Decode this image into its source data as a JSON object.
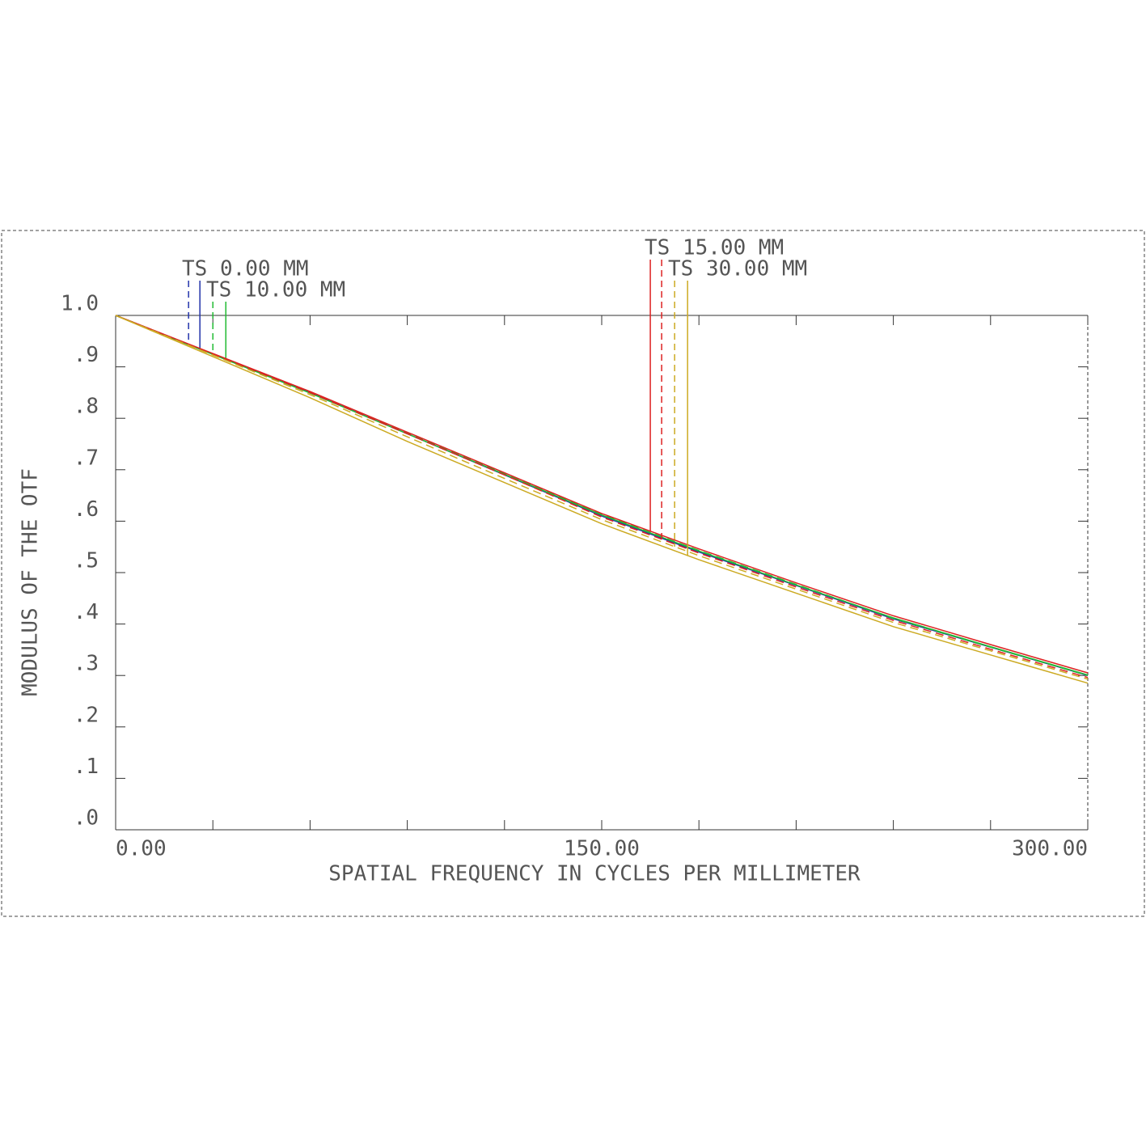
{
  "chart_data": {
    "type": "line",
    "xlabel": "SPATIAL FREQUENCY IN CYCLES PER MILLIMETER",
    "ylabel": "MODULUS OF THE OTF",
    "x": [
      0,
      30,
      60,
      90,
      120,
      150,
      180,
      210,
      240,
      270,
      300
    ],
    "xlim": [
      0,
      300
    ],
    "xticks": [
      {
        "value": 0,
        "label": "0.00"
      },
      {
        "value": 150,
        "label": "150.00"
      },
      {
        "value": 300,
        "label": "300.00"
      }
    ],
    "xminor_ticks": [
      30,
      60,
      90,
      120,
      180,
      210,
      240,
      270
    ],
    "ylim": [
      0,
      1
    ],
    "yticks": [
      {
        "value": 0,
        "label": ".0"
      },
      {
        "value": 0.1,
        "label": ".1"
      },
      {
        "value": 0.2,
        "label": ".2"
      },
      {
        "value": 0.3,
        "label": ".3"
      },
      {
        "value": 0.4,
        "label": ".4"
      },
      {
        "value": 0.5,
        "label": ".5"
      },
      {
        "value": 0.6,
        "label": ".6"
      },
      {
        "value": 0.7,
        "label": ".7"
      },
      {
        "value": 0.8,
        "label": ".8"
      },
      {
        "value": 0.9,
        "label": ".9"
      },
      {
        "value": 1,
        "label": "1.0"
      }
    ],
    "series": [
      {
        "name": "TS 0.00 MM",
        "color": "#2233aa",
        "tangential": [
          1,
          0.925,
          0.85,
          0.77,
          0.69,
          0.61,
          0.54,
          0.475,
          0.41,
          0.355,
          0.3
        ],
        "sagittal": [
          1,
          0.925,
          0.85,
          0.77,
          0.69,
          0.61,
          0.54,
          0.475,
          0.41,
          0.355,
          0.3
        ]
      },
      {
        "name": "TS 10.00 MM",
        "color": "#22bb33",
        "tangential": [
          1,
          0.924,
          0.849,
          0.77,
          0.691,
          0.612,
          0.542,
          0.476,
          0.412,
          0.356,
          0.301
        ],
        "sagittal": [
          1,
          0.925,
          0.851,
          0.772,
          0.692,
          0.613,
          0.543,
          0.477,
          0.411,
          0.355,
          0.3
        ]
      },
      {
        "name": "TS 15.00 MM",
        "color": "#dd2222",
        "tangential": [
          1,
          0.926,
          0.852,
          0.773,
          0.694,
          0.615,
          0.546,
          0.48,
          0.416,
          0.36,
          0.305
        ],
        "sagittal": [
          1,
          0.925,
          0.85,
          0.77,
          0.69,
          0.608,
          0.538,
          0.472,
          0.407,
          0.351,
          0.296
        ]
      },
      {
        "name": "TS 30.00 MM",
        "color": "#ccaa22",
        "tangential": [
          1,
          0.92,
          0.84,
          0.755,
          0.675,
          0.595,
          0.525,
          0.46,
          0.395,
          0.34,
          0.285
        ],
        "sagittal": [
          1,
          0.923,
          0.846,
          0.764,
          0.683,
          0.603,
          0.533,
          0.468,
          0.403,
          0.348,
          0.293
        ]
      }
    ]
  }
}
